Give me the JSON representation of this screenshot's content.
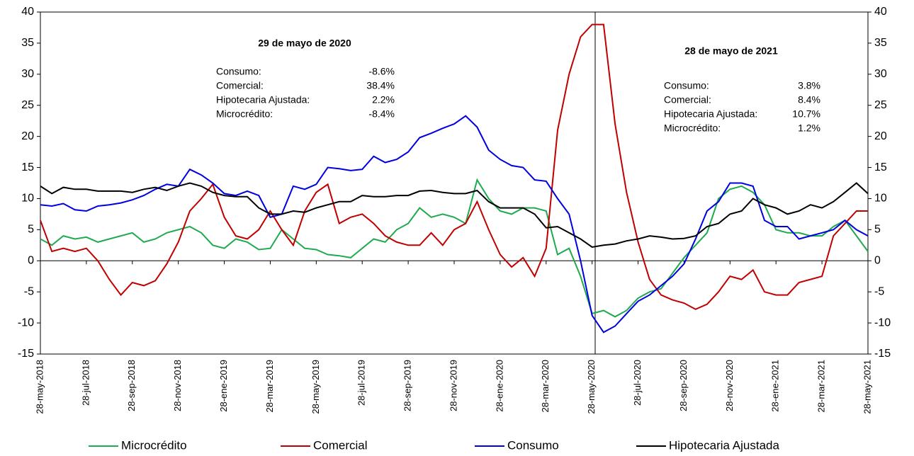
{
  "chart_data": {
    "type": "line",
    "categories": [
      "28-may-2018",
      null,
      null,
      null,
      "28-jul-2018",
      null,
      null,
      null,
      "28-sep-2018",
      null,
      null,
      null,
      "28-nov-2018",
      null,
      null,
      null,
      "28-ene-2019",
      null,
      null,
      null,
      "28-mar-2019",
      null,
      null,
      null,
      "28-may-2019",
      null,
      null,
      null,
      "28-jul-2019",
      null,
      null,
      null,
      "28-sep-2019",
      null,
      null,
      null,
      "28-nov-2019",
      null,
      null,
      null,
      "28-ene-2020",
      null,
      null,
      null,
      "28-mar-2020",
      null,
      null,
      null,
      "28-may-2020",
      null,
      null,
      null,
      "28-jul-2020",
      null,
      null,
      null,
      "28-sep-2020",
      null,
      null,
      null,
      "28-nov-2020",
      null,
      null,
      null,
      "28-ene-2021",
      null,
      null,
      null,
      "28-mar-2021",
      null,
      null,
      null,
      "28-may-2021"
    ],
    "series": [
      {
        "name": "Microcrédito",
        "color": "#1faa4f",
        "values": [
          3.5,
          2.5,
          4,
          3.5,
          3.8,
          3,
          3.5,
          4,
          4.5,
          3,
          3.5,
          4.5,
          5,
          5.5,
          4.5,
          2.5,
          2,
          3.5,
          3,
          1.8,
          2,
          5,
          3.5,
          2,
          1.8,
          1,
          0.8,
          0.5,
          2,
          3.5,
          3,
          5,
          6,
          8.5,
          7,
          7.5,
          7,
          6,
          13,
          10,
          8,
          7.5,
          8.5,
          8.5,
          8,
          1,
          2,
          -2.5,
          -8.5,
          -8,
          -9,
          -8,
          -6,
          -5,
          -4.5,
          -2,
          0.5,
          2.5,
          4.5,
          10,
          11.5,
          12,
          11,
          9,
          5,
          4.5,
          4.5,
          4,
          4,
          5.5,
          6.5,
          4,
          1.5
        ]
      },
      {
        "name": "Comercial",
        "color": "#c00000",
        "values": [
          6.5,
          1.5,
          2,
          1.5,
          2,
          0,
          -3,
          -5.5,
          -3.5,
          -4,
          -3.2,
          -0.5,
          3,
          8,
          10,
          12.3,
          7,
          4,
          3.5,
          5,
          8,
          5,
          2.5,
          8,
          11,
          12.3,
          6,
          7,
          7.5,
          6,
          4,
          3,
          2.5,
          2.5,
          4.5,
          2.5,
          5,
          6,
          9.5,
          5,
          1,
          -1,
          0.5,
          -2.5,
          2,
          21,
          30,
          36,
          38,
          38,
          22,
          11,
          3,
          -3,
          -5.5,
          -6.3,
          -6.8,
          -7.8,
          -7,
          -5,
          -2.5,
          -3,
          -1.5,
          -5,
          -5.5,
          -5.5,
          -3.5,
          -3,
          -2.5,
          4,
          6,
          8,
          8
        ]
      },
      {
        "name": "Consumo",
        "color": "#0000e0",
        "values": [
          9,
          8.8,
          9.2,
          8.2,
          8,
          8.8,
          9,
          9.3,
          9.8,
          10.5,
          11.5,
          12.3,
          12,
          14.7,
          13.8,
          12.5,
          10.8,
          10.5,
          11.2,
          10.5,
          7,
          7.5,
          12,
          11.5,
          12.3,
          15,
          14.8,
          14.5,
          14.7,
          16.8,
          15.8,
          16.3,
          17.5,
          19.8,
          20.5,
          21.3,
          22,
          23.3,
          21.5,
          17.8,
          16.3,
          15.3,
          15,
          13,
          12.8,
          10,
          7.5,
          0,
          -8.8,
          -11.5,
          -10.5,
          -8.5,
          -6.5,
          -5.5,
          -4,
          -2.5,
          -0.5,
          3.5,
          8,
          9.5,
          12.5,
          12.5,
          12,
          6.5,
          5.5,
          5.5,
          3.5,
          4,
          4.5,
          5,
          6.5,
          5,
          4
        ]
      },
      {
        "name": "Hipotecaria Ajustada",
        "color": "#000000",
        "values": [
          12,
          10.8,
          11.8,
          11.5,
          11.5,
          11.2,
          11.2,
          11.2,
          11,
          11.5,
          11.8,
          11.3,
          12,
          12.5,
          12,
          11,
          10.5,
          10.3,
          10.3,
          8.5,
          7.5,
          7.5,
          8,
          7.8,
          8.5,
          9,
          9.5,
          9.5,
          10.5,
          10.3,
          10.3,
          10.5,
          10.5,
          11.2,
          11.3,
          11,
          10.8,
          10.8,
          11.3,
          9.5,
          8.5,
          8.5,
          8.5,
          7.5,
          5.3,
          5.5,
          4.5,
          3.5,
          2.2,
          2.5,
          2.7,
          3.2,
          3.5,
          4,
          3.8,
          3.5,
          3.6,
          4,
          5.5,
          6,
          7.5,
          8,
          10,
          9,
          8.5,
          7.5,
          8,
          9,
          8.5,
          9.5,
          11,
          12.5,
          10.8
        ]
      }
    ],
    "ylim": [
      -15,
      40
    ],
    "yticks": [
      -15,
      -10,
      -5,
      0,
      5,
      10,
      15,
      20,
      25,
      30,
      35,
      40
    ],
    "y2lim": [
      -15,
      40
    ],
    "y2ticks": [
      -15,
      -10,
      -5,
      0,
      5,
      10,
      15,
      20,
      25,
      30,
      35,
      40
    ],
    "legend": "bottom",
    "annotations": [
      {
        "title": "29 de mayo de 2020",
        "rows": [
          [
            "Consumo:",
            "-8.6%"
          ],
          [
            "Comercial:",
            "38.4%"
          ],
          [
            "Hipotecaria Ajustada:",
            "2.2%"
          ],
          [
            "Microcrédito:",
            "-8.4%"
          ]
        ]
      },
      {
        "title": "28 de mayo de 2021",
        "rows": [
          [
            "Consumo:",
            "3.8%"
          ],
          [
            "Comercial:",
            "8.4%"
          ],
          [
            "Hipotecaria Ajustada:",
            "10.7%"
          ],
          [
            "Microcrédito:",
            "1.2%"
          ]
        ]
      }
    ]
  }
}
